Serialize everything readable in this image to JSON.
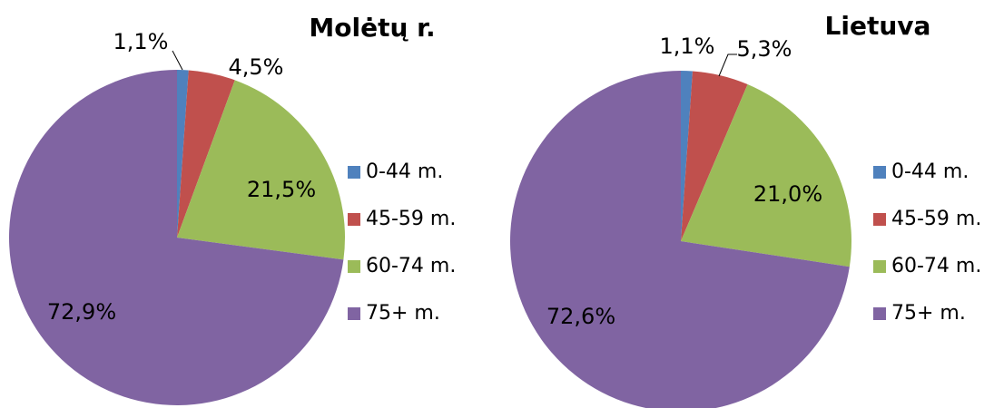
{
  "chart_data": [
    {
      "type": "pie",
      "title": "Molėtų r.",
      "categories": [
        "0-44 m.",
        "45-59 m.",
        "60-74 m.",
        "75+ m."
      ],
      "values": [
        1.1,
        4.5,
        21.5,
        72.9
      ],
      "value_labels": [
        "1,1%",
        "4,5%",
        "21,5%",
        "72,9%"
      ],
      "colors": [
        "#4f81bd",
        "#c0504d",
        "#9bbb59",
        "#8064a2"
      ]
    },
    {
      "type": "pie",
      "title": "Lietuva",
      "categories": [
        "0-44 m.",
        "45-59 m.",
        "60-74 m.",
        "75+ m."
      ],
      "values": [
        1.1,
        5.3,
        21.0,
        72.6
      ],
      "value_labels": [
        "1,1%",
        "5,3%",
        "21,0%",
        "72,6%"
      ],
      "colors": [
        "#4f81bd",
        "#c0504d",
        "#9bbb59",
        "#8064a2"
      ]
    }
  ]
}
